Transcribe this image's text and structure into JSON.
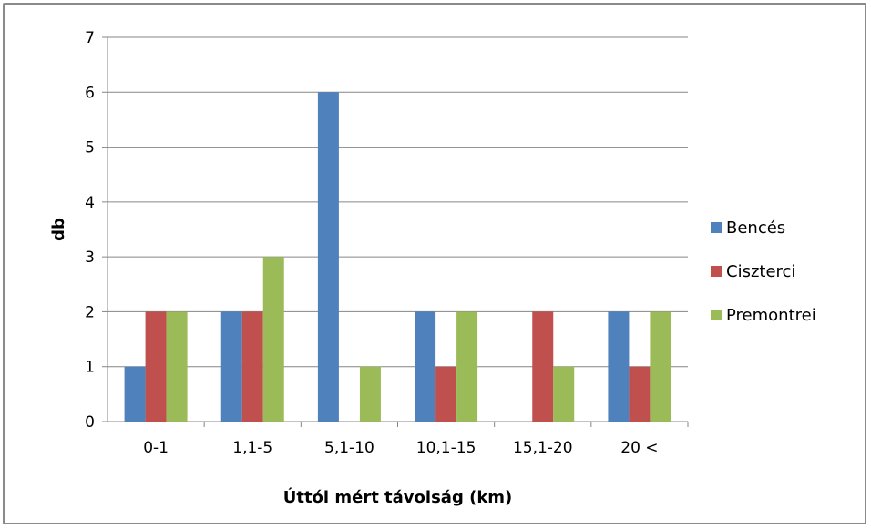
{
  "chart_data": {
    "type": "bar",
    "title": "",
    "xlabel": "Úttól mért távolság (km)",
    "ylabel": "db",
    "ylim": [
      0,
      7
    ],
    "yticks": [
      "0",
      "1",
      "2",
      "3",
      "4",
      "5",
      "6",
      "7"
    ],
    "grid": true,
    "legend_position": "right",
    "categories": [
      "0-1",
      "1,1-5",
      "5,1-10",
      "10,1-15",
      "15,1-20",
      "20 <"
    ],
    "series": [
      {
        "name": "Bencés",
        "color": "#4F81BD",
        "values": [
          1,
          2,
          6,
          2,
          0,
          2
        ]
      },
      {
        "name": "Ciszterci",
        "color": "#C0504D",
        "values": [
          2,
          2,
          0,
          1,
          2,
          1
        ]
      },
      {
        "name": "Premontrei",
        "color": "#9BBB59",
        "values": [
          2,
          3,
          1,
          2,
          1,
          2
        ]
      }
    ]
  }
}
